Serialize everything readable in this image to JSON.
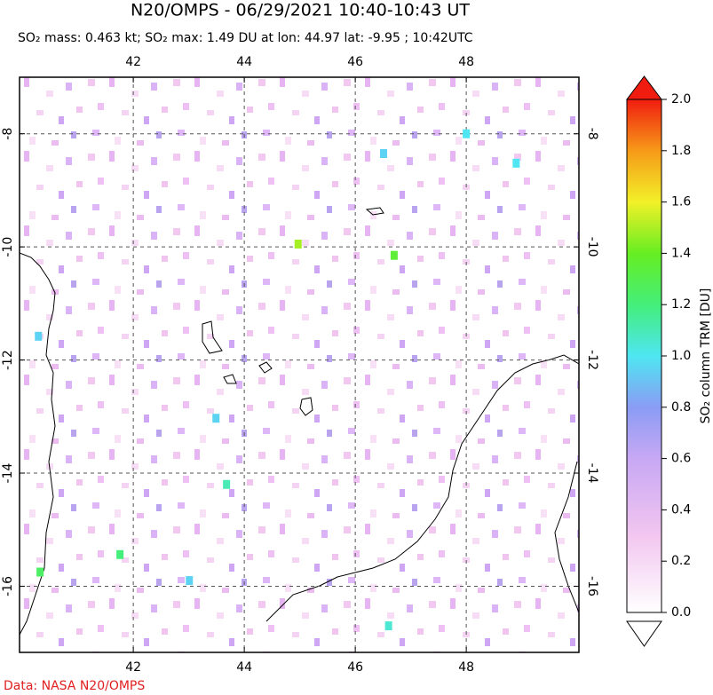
{
  "chart_data": {
    "type": "map",
    "title": "N20/OMPS - 06/29/2021 10:40-10:43 UT",
    "subtitle": "SO₂ mass: 0.463 kt; SO₂ max: 1.49 DU at lon: 44.97 lat: -9.95 ; 10:42UTC",
    "xlim": [
      39.95,
      50.03
    ],
    "ylim": [
      -17.17,
      -7.0
    ],
    "xticks": [
      42,
      44,
      46,
      48
    ],
    "yticks": [
      -8,
      -10,
      -12,
      -14,
      -16
    ],
    "grid": true,
    "points": {
      "lon": [
        44.97,
        46.7,
        41.76,
        40.32,
        43.68,
        48.9,
        48.0,
        46.6,
        40.29,
        43.49,
        43.01,
        46.51
      ],
      "lat": [
        -9.95,
        -10.15,
        -15.44,
        -15.75,
        -14.2,
        -8.52,
        -8.0,
        -16.7,
        -11.58,
        -13.03,
        -15.9,
        -8.35
      ],
      "values": [
        1.49,
        1.35,
        1.2,
        1.25,
        1.1,
        1.0,
        1.0,
        1.05,
        0.95,
        0.95,
        0.95,
        0.95
      ]
    },
    "colorbar": {
      "label": "SO₂ column TRM [DU]",
      "lim": [
        0,
        2.0
      ],
      "ticks": [
        {
          "value": 0,
          "label": "0.0"
        },
        {
          "value": 0.2,
          "label": "0.2"
        },
        {
          "value": 0.4,
          "label": "0.4"
        },
        {
          "value": 0.6,
          "label": "0.6"
        },
        {
          "value": 0.8,
          "label": "0.8"
        },
        {
          "value": 1.0,
          "label": "1.0"
        },
        {
          "value": 1.2,
          "label": "1.2"
        },
        {
          "value": 1.4,
          "label": "1.4"
        },
        {
          "value": 1.6,
          "label": "1.6"
        },
        {
          "value": 1.8,
          "label": "1.8"
        },
        {
          "value": 2.0,
          "label": "2.0"
        }
      ]
    },
    "credit": "Data: NASA N20/OMPS"
  }
}
